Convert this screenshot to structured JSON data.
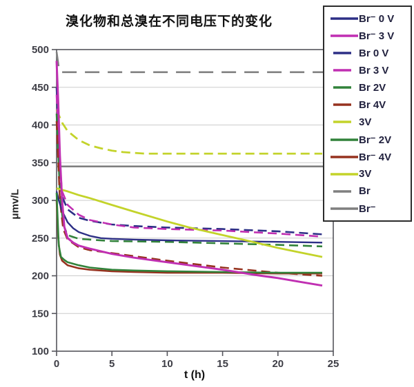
{
  "chart_data": {
    "type": "line",
    "title": "溴化物和总溴在不同电压下的变化",
    "xlabel": "t (h)",
    "ylabel": "μmv/L",
    "xlim": [
      0,
      25
    ],
    "ylim": [
      100,
      500
    ],
    "xticks": [
      0,
      5,
      10,
      15,
      20,
      25
    ],
    "yticks": [
      100,
      150,
      200,
      250,
      300,
      350,
      400,
      450,
      500
    ],
    "grid": "horizontal",
    "legend_position": "top-right",
    "series": [
      {
        "name": "Br⁻ 0 V",
        "color": "#2d2f86",
        "style": "solid",
        "width": 2.4,
        "points": [
          [
            0,
            312
          ],
          [
            0.2,
            300
          ],
          [
            0.5,
            286
          ],
          [
            1,
            271
          ],
          [
            1.5,
            263
          ],
          [
            2,
            258
          ],
          [
            3,
            253
          ],
          [
            4,
            250
          ],
          [
            5,
            249
          ],
          [
            7,
            248
          ],
          [
            10,
            247
          ],
          [
            15,
            246
          ],
          [
            20,
            245
          ],
          [
            24,
            244
          ]
        ]
      },
      {
        "name": "Br⁻ 3 V",
        "color": "#c02fb2",
        "style": "solid",
        "width": 3,
        "points": [
          [
            0,
            485
          ],
          [
            0.15,
            430
          ],
          [
            0.3,
            360
          ],
          [
            0.5,
            300
          ],
          [
            0.7,
            265
          ],
          [
            1,
            250
          ],
          [
            1.5,
            244
          ],
          [
            2,
            240
          ],
          [
            3,
            236
          ],
          [
            5,
            229
          ],
          [
            7,
            224
          ],
          [
            10,
            218
          ],
          [
            12,
            214
          ],
          [
            15,
            208
          ],
          [
            18,
            201
          ],
          [
            20,
            197
          ],
          [
            22,
            192
          ],
          [
            24,
            187
          ]
        ]
      },
      {
        "name": "Br 0 V",
        "color": "#2d2f86",
        "style": "dashed",
        "width": 2.6,
        "points": [
          [
            0,
            450
          ],
          [
            0.3,
            340
          ],
          [
            0.5,
            305
          ],
          [
            1,
            288
          ],
          [
            2,
            277
          ],
          [
            3,
            273
          ],
          [
            5,
            268
          ],
          [
            7,
            266
          ],
          [
            10,
            264
          ],
          [
            15,
            262
          ],
          [
            20,
            259
          ],
          [
            24,
            255
          ]
        ]
      },
      {
        "name": "Br 3 V",
        "color": "#c02fb2",
        "style": "dashed",
        "width": 2.6,
        "points": [
          [
            0,
            440
          ],
          [
            0.3,
            345
          ],
          [
            0.5,
            312
          ],
          [
            1,
            294
          ],
          [
            2,
            281
          ],
          [
            3,
            274
          ],
          [
            5,
            268
          ],
          [
            7,
            264
          ],
          [
            10,
            262
          ],
          [
            15,
            260
          ],
          [
            20,
            256
          ],
          [
            24,
            252
          ]
        ]
      },
      {
        "name": "Br 2V",
        "color": "#31823a",
        "style": "dashed",
        "width": 2.6,
        "points": [
          [
            0,
            415
          ],
          [
            0.3,
            310
          ],
          [
            0.6,
            268
          ],
          [
            1,
            254
          ],
          [
            2,
            249
          ],
          [
            3,
            248
          ],
          [
            5,
            246
          ],
          [
            10,
            245
          ],
          [
            15,
            243
          ],
          [
            20,
            241
          ],
          [
            24,
            239
          ]
        ]
      },
      {
        "name": "Br 4V",
        "color": "#96321f",
        "style": "dashed",
        "width": 2.6,
        "points": [
          [
            0,
            405
          ],
          [
            0.3,
            300
          ],
          [
            0.6,
            262
          ],
          [
            1,
            248
          ],
          [
            2,
            238
          ],
          [
            3,
            234
          ],
          [
            5,
            230
          ],
          [
            7,
            226
          ],
          [
            10,
            220
          ],
          [
            15,
            211
          ],
          [
            20,
            204
          ],
          [
            24,
            200
          ]
        ]
      },
      {
        "name": "3V",
        "color": "#c3d32a",
        "style": "dashed",
        "width": 2.8,
        "points": [
          [
            0,
            420
          ],
          [
            0.5,
            403
          ],
          [
            1,
            392
          ],
          [
            2,
            380
          ],
          [
            3,
            373
          ],
          [
            4,
            369
          ],
          [
            5,
            366
          ],
          [
            6,
            364
          ],
          [
            8,
            362
          ],
          [
            10,
            362
          ],
          [
            15,
            362
          ],
          [
            20,
            362
          ],
          [
            24,
            362
          ]
        ]
      },
      {
        "name": "Br⁻ 2V",
        "color": "#31823a",
        "style": "solid",
        "width": 2.6,
        "points": [
          [
            0,
            310
          ],
          [
            0.2,
            240
          ],
          [
            0.4,
            225
          ],
          [
            0.7,
            221
          ],
          [
            1,
            218
          ],
          [
            2,
            214
          ],
          [
            3,
            211
          ],
          [
            5,
            208
          ],
          [
            7,
            207
          ],
          [
            10,
            206
          ],
          [
            15,
            205
          ],
          [
            20,
            204
          ],
          [
            24,
            204
          ]
        ]
      },
      {
        "name": "Br⁻ 4V",
        "color": "#96321f",
        "style": "solid",
        "width": 2.6,
        "points": [
          [
            0,
            300
          ],
          [
            0.15,
            250
          ],
          [
            0.3,
            228
          ],
          [
            0.5,
            220
          ],
          [
            1,
            214
          ],
          [
            2,
            210
          ],
          [
            3,
            208
          ],
          [
            5,
            206
          ],
          [
            7,
            205
          ],
          [
            10,
            204
          ],
          [
            15,
            204
          ],
          [
            20,
            203
          ],
          [
            24,
            203
          ]
        ]
      },
      {
        "name": "3V",
        "color": "#c3d32a",
        "style": "solid",
        "width": 2.8,
        "points": [
          [
            0,
            316
          ],
          [
            1,
            312
          ],
          [
            2,
            307
          ],
          [
            3,
            303
          ],
          [
            5,
            294
          ],
          [
            7,
            285
          ],
          [
            10,
            272
          ],
          [
            12,
            264
          ],
          [
            15,
            254
          ],
          [
            18,
            244
          ],
          [
            20,
            237
          ],
          [
            22,
            231
          ],
          [
            24,
            225
          ]
        ]
      },
      {
        "name": "Br",
        "color": "#7f7f7f",
        "style": "dashed-long",
        "width": 2.6,
        "points": [
          [
            0,
            497
          ],
          [
            0.25,
            471
          ],
          [
            0.5,
            470
          ],
          [
            25,
            470
          ]
        ]
      },
      {
        "name": "Br⁻",
        "color": "#7f7f7f",
        "style": "solid",
        "width": 2.6,
        "points": [
          [
            0,
            345
          ],
          [
            25,
            345
          ]
        ]
      }
    ]
  },
  "colors": {
    "grid": "#cbcbcb",
    "axis": "#55555c",
    "tick_label": "#3d3d45",
    "legend_border": "#2b2b2b"
  }
}
